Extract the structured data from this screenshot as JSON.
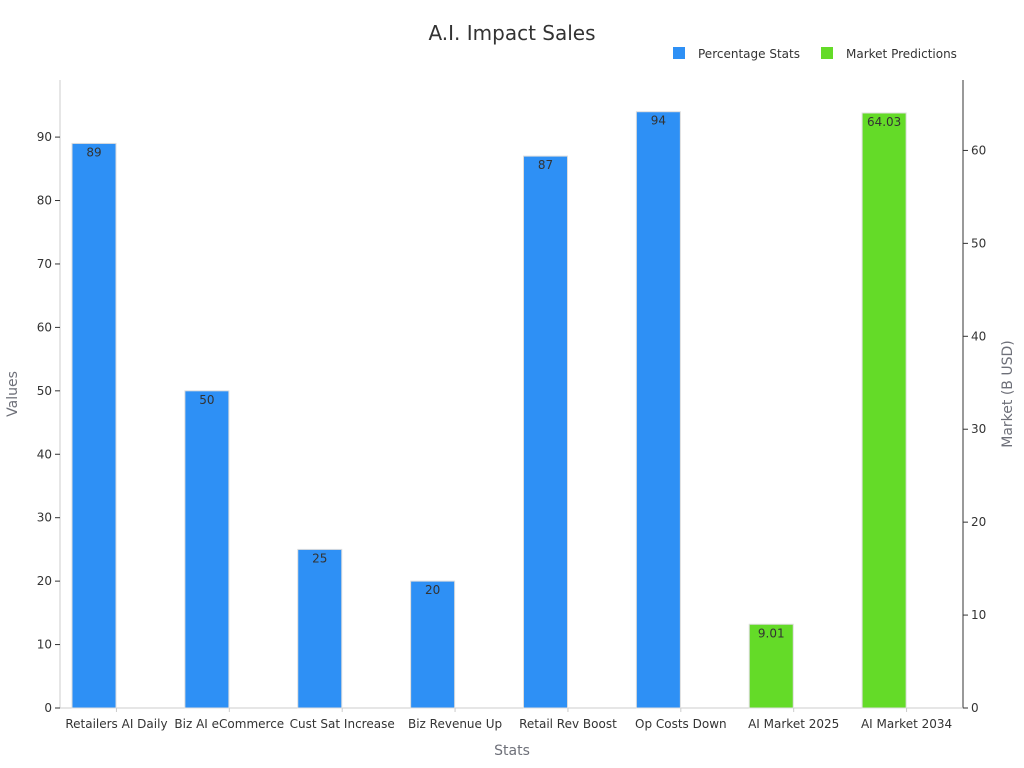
{
  "chart_data": {
    "type": "bar",
    "title": "A.I. Impact Sales",
    "xlabel": "Stats",
    "ylabel": "Values",
    "ylabel_right": "Market (B USD)",
    "categories": [
      "Retailers AI Daily",
      "Biz AI eCommerce",
      "Cust Sat Increase",
      "Biz Revenue Up",
      "Retail Rev Boost",
      "Op Costs Down",
      "AI Market 2025",
      "AI Market 2034"
    ],
    "ylim": [
      0,
      99
    ],
    "ylim_right": [
      0,
      67.58
    ],
    "yticks": [
      0,
      10,
      20,
      30,
      40,
      50,
      60,
      70,
      80,
      90
    ],
    "yticks_right": [
      0,
      10,
      20,
      30,
      40,
      50,
      60
    ],
    "grid": false,
    "legend_position": "top-right",
    "series": [
      {
        "name": "Percentage Stats",
        "axis": "left",
        "color": "#2e90f5",
        "values": [
          89,
          50,
          25,
          20,
          87,
          94,
          null,
          null
        ],
        "labels": [
          "89",
          "50",
          "25",
          "20",
          "87",
          "94",
          "",
          ""
        ]
      },
      {
        "name": "Market Predictions",
        "axis": "right",
        "color": "#64db28",
        "values": [
          null,
          null,
          null,
          null,
          null,
          null,
          9.01,
          64.03
        ],
        "labels": [
          "",
          "",
          "",
          "",
          "",
          "",
          "9.01",
          "64.03"
        ]
      }
    ]
  }
}
